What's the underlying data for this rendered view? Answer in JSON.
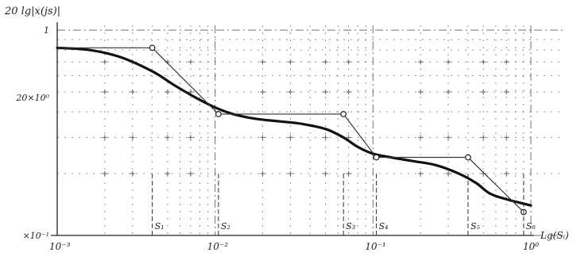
{
  "chart_data": {
    "type": "line",
    "ylabel": "20 lg|x(js)|",
    "xlabel": "Lg(Sᵢ)",
    "x_scale": "log",
    "y_scale": "log",
    "xlim": [
      0.001,
      1
    ],
    "ylim": [
      0.1,
      1
    ],
    "x_tick_labels": [
      {
        "value": 0.001,
        "label": "10⁻³"
      },
      {
        "value": 0.01,
        "label": "10⁻²"
      },
      {
        "value": 0.1,
        "label": "10⁻¹"
      },
      {
        "value": 1,
        "label": "10⁰"
      }
    ],
    "y_tick_labels": [
      {
        "value": 1,
        "label": "1"
      },
      {
        "value": 0.47,
        "label": "20×10⁰"
      },
      {
        "value": 0.1,
        "label": "×10⁻¹"
      }
    ],
    "grid": true,
    "series": [
      {
        "style": "smooth",
        "x": [
          0.001,
          0.0016,
          0.0025,
          0.004,
          0.0055,
          0.0075,
          0.01,
          0.013,
          0.018,
          0.025,
          0.035,
          0.05,
          0.065,
          0.08,
          0.1,
          0.13,
          0.18,
          0.25,
          0.35,
          0.45,
          0.55,
          0.7,
          1.0
        ],
        "y": [
          0.82,
          0.8,
          0.74,
          0.63,
          0.54,
          0.47,
          0.42,
          0.39,
          0.37,
          0.36,
          0.35,
          0.33,
          0.3,
          0.27,
          0.25,
          0.24,
          0.23,
          0.22,
          0.2,
          0.18,
          0.16,
          0.15,
          0.14
        ]
      },
      {
        "style": "polyline-with-markers",
        "x": [
          0.001,
          0.004,
          0.0105,
          0.065,
          0.105,
          0.4,
          0.9
        ],
        "y": [
          0.82,
          0.82,
          0.39,
          0.39,
          0.24,
          0.24,
          0.13
        ]
      }
    ],
    "annotations": [
      {
        "label": "S₁",
        "x": 0.004
      },
      {
        "label": "S₂",
        "x": 0.0105
      },
      {
        "label": "S₃",
        "x": 0.065
      },
      {
        "label": "S₄",
        "x": 0.105
      },
      {
        "label": "S₅",
        "x": 0.4
      },
      {
        "label": "S₆",
        "x": 0.9
      }
    ]
  }
}
